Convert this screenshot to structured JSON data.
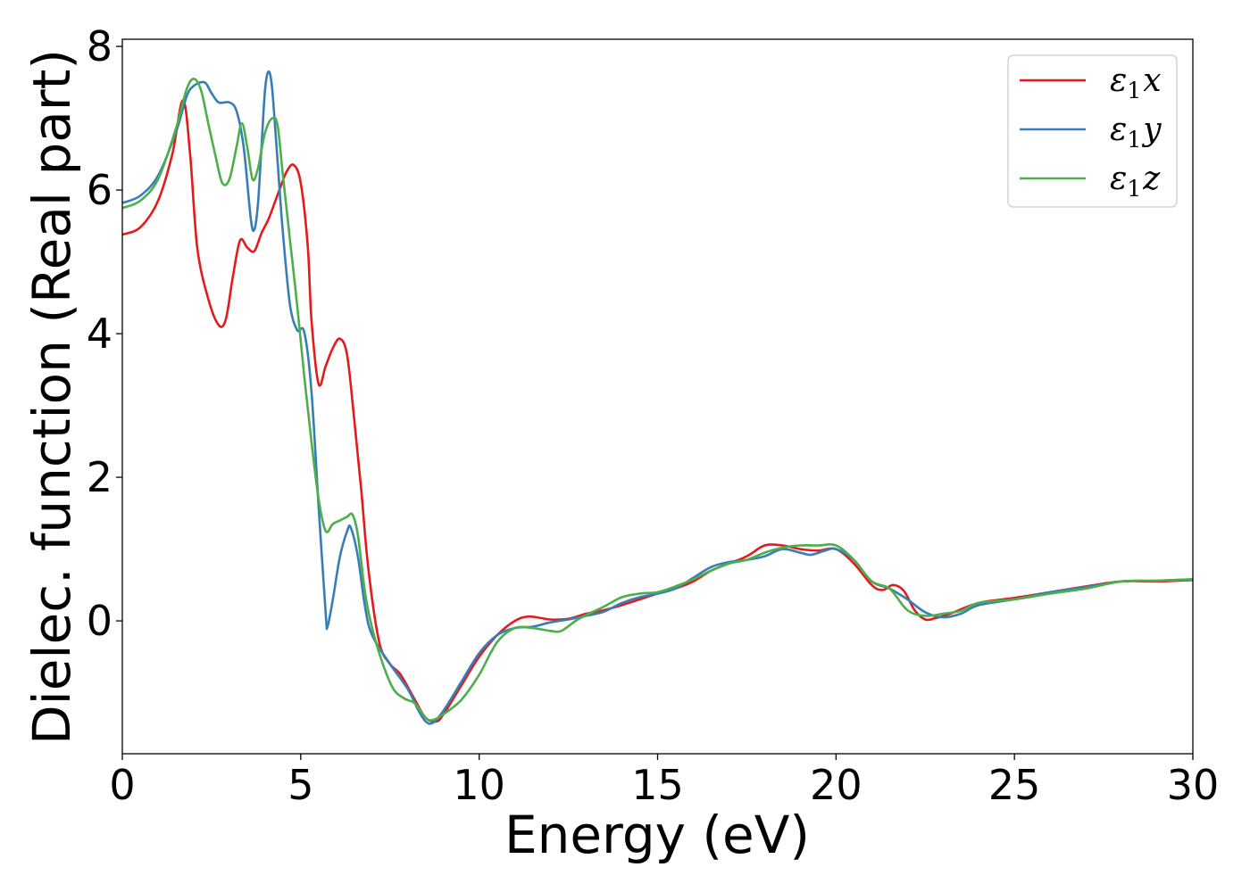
{
  "chart_data": {
    "type": "line",
    "title": "",
    "xlabel": "Energy (eV)",
    "ylabel": "Dielec. function (Real part)",
    "xlim": [
      0,
      30
    ],
    "ylim": [
      -1.85,
      8.1
    ],
    "xticks": [
      0,
      5,
      10,
      15,
      20,
      25,
      30
    ],
    "yticks": [
      0,
      2,
      4,
      6,
      8
    ],
    "grid": false,
    "legend_position": "top-right",
    "series": [
      {
        "name": "ε₁x",
        "legend_base": "ε",
        "legend_sub": "1",
        "legend_suffix": "x",
        "color": "#e41a1c",
        "points": [
          [
            0,
            5.38
          ],
          [
            0.5,
            5.48
          ],
          [
            1.0,
            5.85
          ],
          [
            1.4,
            6.5
          ],
          [
            1.7,
            7.25
          ],
          [
            1.9,
            6.5
          ],
          [
            2.1,
            5.2
          ],
          [
            2.4,
            4.5
          ],
          [
            2.7,
            4.12
          ],
          [
            2.9,
            4.2
          ],
          [
            3.1,
            4.8
          ],
          [
            3.3,
            5.3
          ],
          [
            3.5,
            5.2
          ],
          [
            3.7,
            5.15
          ],
          [
            3.9,
            5.4
          ],
          [
            4.1,
            5.6
          ],
          [
            4.4,
            6.0
          ],
          [
            4.6,
            6.25
          ],
          [
            4.8,
            6.35
          ],
          [
            5.0,
            6.1
          ],
          [
            5.2,
            5.2
          ],
          [
            5.3,
            4.2
          ],
          [
            5.5,
            3.3
          ],
          [
            5.7,
            3.55
          ],
          [
            5.9,
            3.8
          ],
          [
            6.1,
            3.93
          ],
          [
            6.3,
            3.7
          ],
          [
            6.5,
            2.8
          ],
          [
            6.7,
            1.8
          ],
          [
            6.9,
            0.7
          ],
          [
            7.2,
            -0.3
          ],
          [
            7.5,
            -0.6
          ],
          [
            7.8,
            -0.75
          ],
          [
            8.2,
            -1.1
          ],
          [
            8.5,
            -1.35
          ],
          [
            8.8,
            -1.4
          ],
          [
            9.0,
            -1.3
          ],
          [
            9.5,
            -0.9
          ],
          [
            10.0,
            -0.5
          ],
          [
            10.5,
            -0.2
          ],
          [
            11.0,
            0.0
          ],
          [
            11.4,
            0.06
          ],
          [
            12.0,
            0.02
          ],
          [
            12.5,
            0.03
          ],
          [
            13.0,
            0.1
          ],
          [
            13.5,
            0.15
          ],
          [
            14.0,
            0.22
          ],
          [
            14.5,
            0.3
          ],
          [
            15.0,
            0.38
          ],
          [
            15.5,
            0.45
          ],
          [
            16.0,
            0.55
          ],
          [
            16.5,
            0.7
          ],
          [
            17.0,
            0.8
          ],
          [
            17.5,
            0.9
          ],
          [
            18.0,
            1.05
          ],
          [
            18.5,
            1.05
          ],
          [
            19.0,
            1.0
          ],
          [
            19.5,
            0.98
          ],
          [
            20.0,
            1.0
          ],
          [
            20.5,
            0.8
          ],
          [
            21.0,
            0.5
          ],
          [
            21.3,
            0.43
          ],
          [
            21.6,
            0.5
          ],
          [
            21.9,
            0.42
          ],
          [
            22.2,
            0.15
          ],
          [
            22.5,
            0.02
          ],
          [
            22.8,
            0.04
          ],
          [
            23.2,
            0.1
          ],
          [
            24.0,
            0.25
          ],
          [
            25.0,
            0.32
          ],
          [
            26.0,
            0.4
          ],
          [
            27.0,
            0.48
          ],
          [
            28.0,
            0.55
          ],
          [
            29.0,
            0.55
          ],
          [
            30.0,
            0.57
          ]
        ]
      },
      {
        "name": "ε₁y",
        "legend_base": "ε",
        "legend_sub": "1",
        "legend_suffix": "y",
        "color": "#377eb8",
        "points": [
          [
            0,
            5.82
          ],
          [
            0.5,
            5.92
          ],
          [
            1.0,
            6.2
          ],
          [
            1.5,
            6.8
          ],
          [
            1.8,
            7.3
          ],
          [
            2.0,
            7.45
          ],
          [
            2.3,
            7.5
          ],
          [
            2.5,
            7.35
          ],
          [
            2.7,
            7.22
          ],
          [
            3.0,
            7.22
          ],
          [
            3.2,
            7.1
          ],
          [
            3.4,
            6.6
          ],
          [
            3.6,
            5.6
          ],
          [
            3.7,
            5.45
          ],
          [
            3.8,
            5.8
          ],
          [
            3.9,
            6.6
          ],
          [
            4.0,
            7.4
          ],
          [
            4.1,
            7.65
          ],
          [
            4.2,
            7.4
          ],
          [
            4.35,
            6.4
          ],
          [
            4.5,
            5.4
          ],
          [
            4.7,
            4.4
          ],
          [
            4.9,
            4.05
          ],
          [
            5.1,
            4.02
          ],
          [
            5.3,
            3.2
          ],
          [
            5.5,
            1.6
          ],
          [
            5.7,
            0.1
          ],
          [
            5.75,
            -0.08
          ],
          [
            5.9,
            0.3
          ],
          [
            6.1,
            0.9
          ],
          [
            6.3,
            1.25
          ],
          [
            6.4,
            1.3
          ],
          [
            6.6,
            0.9
          ],
          [
            6.8,
            0.2
          ],
          [
            7.0,
            -0.2
          ],
          [
            7.5,
            -0.6
          ],
          [
            8.0,
            -0.95
          ],
          [
            8.3,
            -1.25
          ],
          [
            8.5,
            -1.4
          ],
          [
            8.7,
            -1.42
          ],
          [
            9.0,
            -1.25
          ],
          [
            9.5,
            -0.85
          ],
          [
            10.0,
            -0.45
          ],
          [
            10.5,
            -0.2
          ],
          [
            11.0,
            -0.1
          ],
          [
            11.5,
            -0.08
          ],
          [
            12.0,
            -0.02
          ],
          [
            12.5,
            0.02
          ],
          [
            13.0,
            0.07
          ],
          [
            13.5,
            0.13
          ],
          [
            14.0,
            0.25
          ],
          [
            14.5,
            0.33
          ],
          [
            15.0,
            0.38
          ],
          [
            15.5,
            0.45
          ],
          [
            16.0,
            0.6
          ],
          [
            16.5,
            0.75
          ],
          [
            17.0,
            0.82
          ],
          [
            17.5,
            0.85
          ],
          [
            18.0,
            0.9
          ],
          [
            18.5,
            1.0
          ],
          [
            19.0,
            0.95
          ],
          [
            19.3,
            0.92
          ],
          [
            19.7,
            0.98
          ],
          [
            20.0,
            1.0
          ],
          [
            20.5,
            0.85
          ],
          [
            21.0,
            0.55
          ],
          [
            21.5,
            0.45
          ],
          [
            22.0,
            0.3
          ],
          [
            22.5,
            0.12
          ],
          [
            23.0,
            0.05
          ],
          [
            23.5,
            0.1
          ],
          [
            24.0,
            0.22
          ],
          [
            25.0,
            0.3
          ],
          [
            26.0,
            0.4
          ],
          [
            27.0,
            0.47
          ],
          [
            28.0,
            0.55
          ],
          [
            29.0,
            0.56
          ],
          [
            30.0,
            0.58
          ]
        ]
      },
      {
        "name": "ε₁z",
        "legend_base": "ε",
        "legend_sub": "1",
        "legend_suffix": "z",
        "color": "#4daf4a",
        "points": [
          [
            0,
            5.75
          ],
          [
            0.5,
            5.85
          ],
          [
            1.0,
            6.15
          ],
          [
            1.5,
            6.85
          ],
          [
            1.8,
            7.4
          ],
          [
            2.0,
            7.55
          ],
          [
            2.2,
            7.4
          ],
          [
            2.4,
            6.95
          ],
          [
            2.6,
            6.5
          ],
          [
            2.8,
            6.1
          ],
          [
            3.0,
            6.15
          ],
          [
            3.2,
            6.6
          ],
          [
            3.35,
            6.93
          ],
          [
            3.5,
            6.6
          ],
          [
            3.65,
            6.15
          ],
          [
            3.8,
            6.3
          ],
          [
            4.0,
            6.8
          ],
          [
            4.2,
            7.0
          ],
          [
            4.35,
            6.9
          ],
          [
            4.5,
            6.2
          ],
          [
            4.7,
            5.3
          ],
          [
            4.9,
            4.4
          ],
          [
            5.1,
            3.4
          ],
          [
            5.3,
            2.5
          ],
          [
            5.5,
            1.7
          ],
          [
            5.7,
            1.25
          ],
          [
            5.9,
            1.35
          ],
          [
            6.1,
            1.4
          ],
          [
            6.3,
            1.45
          ],
          [
            6.45,
            1.48
          ],
          [
            6.6,
            1.2
          ],
          [
            6.8,
            0.4
          ],
          [
            7.0,
            -0.1
          ],
          [
            7.3,
            -0.6
          ],
          [
            7.6,
            -0.95
          ],
          [
            7.9,
            -1.08
          ],
          [
            8.2,
            -1.15
          ],
          [
            8.5,
            -1.35
          ],
          [
            8.7,
            -1.38
          ],
          [
            9.0,
            -1.3
          ],
          [
            9.5,
            -1.1
          ],
          [
            10.0,
            -0.75
          ],
          [
            10.5,
            -0.3
          ],
          [
            11.0,
            -0.1
          ],
          [
            11.5,
            -0.1
          ],
          [
            12.0,
            -0.14
          ],
          [
            12.3,
            -0.14
          ],
          [
            12.7,
            0.0
          ],
          [
            13.0,
            0.08
          ],
          [
            13.5,
            0.2
          ],
          [
            14.0,
            0.33
          ],
          [
            14.5,
            0.38
          ],
          [
            15.0,
            0.4
          ],
          [
            15.5,
            0.48
          ],
          [
            16.0,
            0.58
          ],
          [
            16.5,
            0.7
          ],
          [
            17.0,
            0.8
          ],
          [
            17.5,
            0.85
          ],
          [
            18.0,
            0.95
          ],
          [
            18.5,
            1.02
          ],
          [
            19.0,
            1.05
          ],
          [
            19.5,
            1.05
          ],
          [
            20.0,
            1.05
          ],
          [
            20.5,
            0.85
          ],
          [
            21.0,
            0.55
          ],
          [
            21.5,
            0.45
          ],
          [
            22.0,
            0.15
          ],
          [
            22.5,
            0.07
          ],
          [
            23.0,
            0.1
          ],
          [
            23.5,
            0.14
          ],
          [
            24.0,
            0.25
          ],
          [
            25.0,
            0.3
          ],
          [
            26.0,
            0.38
          ],
          [
            27.0,
            0.45
          ],
          [
            28.0,
            0.55
          ],
          [
            29.0,
            0.56
          ],
          [
            30.0,
            0.58
          ]
        ]
      }
    ]
  }
}
